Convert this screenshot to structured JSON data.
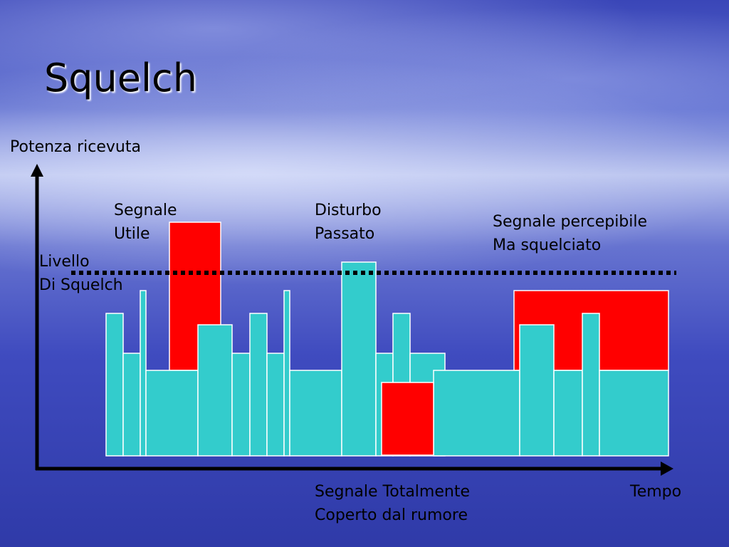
{
  "title": "Squelch",
  "axes": {
    "y_label": "Potenza ricevuta",
    "x_label": "Tempo"
  },
  "labels": [
    {
      "lines": [
        "Segnale",
        "Utile"
      ]
    },
    {
      "lines": [
        "Disturbo",
        "Passato"
      ]
    },
    {
      "lines": [
        "Segnale percepibile",
        "Ma squelciato"
      ]
    },
    {
      "lines": [
        "Livello",
        "Di Squelch"
      ]
    },
    {
      "lines": [
        "Segnale Totalmente",
        "Coperto dal rumore"
      ]
    }
  ]
}
